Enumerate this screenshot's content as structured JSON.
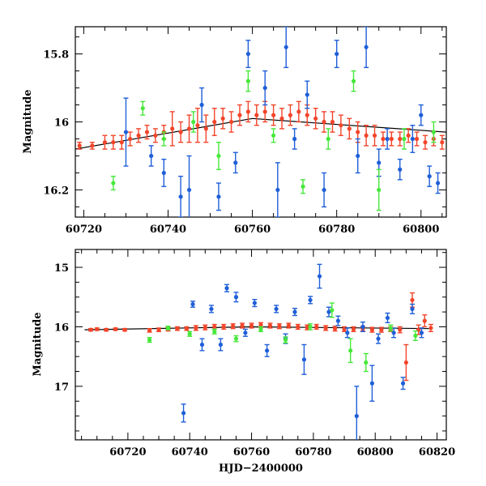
{
  "colors": {
    "series_blue": "#1f5fd8",
    "series_green": "#46e83a",
    "series_red": "#f2452a",
    "fit_line": "#000000",
    "axis": "#000000"
  },
  "chart_data": [
    {
      "type": "scatter",
      "panel": "top",
      "title": "",
      "xlabel": "",
      "ylabel": "Magnitude",
      "xlim": [
        60718,
        60806
      ],
      "ylim": [
        16.28,
        15.72
      ],
      "y_inverted": true,
      "grid": false,
      "legend": "none",
      "xticks": [
        60720,
        60740,
        60760,
        60780,
        60800
      ],
      "xtick_labels": [
        "60720",
        "60740",
        "60760",
        "60780",
        "60800"
      ],
      "yticks": [
        15.8,
        16.0,
        16.2
      ],
      "ytick_labels": [
        "15.8",
        "16",
        "16.2"
      ],
      "trend_line": {
        "x": [
          60718,
          60760,
          60806
        ],
        "y": [
          16.08,
          15.99,
          16.03
        ]
      },
      "series": [
        {
          "color_key": "series_red",
          "x": [
            60719,
            60722,
            60725,
            60727,
            60729,
            60731,
            60733,
            60735,
            60737,
            60739,
            60741,
            60743,
            60745,
            60747,
            60749,
            60751,
            60753,
            60755,
            60757,
            60759,
            60761,
            60763,
            60765,
            60767,
            60769,
            60771,
            60773,
            60775,
            60777,
            60779,
            60781,
            60783,
            60785,
            60787,
            60789,
            60791,
            60793,
            60795,
            60797,
            60799,
            60801,
            60803,
            60805
          ],
          "y": [
            16.07,
            16.07,
            16.06,
            16.06,
            16.06,
            16.05,
            16.04,
            16.03,
            16.04,
            16.03,
            16.02,
            16.03,
            16.02,
            16.01,
            16.02,
            16.0,
            15.99,
            16.0,
            15.98,
            15.97,
            15.98,
            15.97,
            15.98,
            15.99,
            15.98,
            15.97,
            15.98,
            15.99,
            16.0,
            16.0,
            16.01,
            16.02,
            16.03,
            16.04,
            16.04,
            16.05,
            16.05,
            16.05,
            16.04,
            16.05,
            16.06,
            16.05,
            16.06
          ],
          "err": [
            0.01,
            0.01,
            0.02,
            0.02,
            0.02,
            0.02,
            0.02,
            0.02,
            0.02,
            0.02,
            0.05,
            0.03,
            0.04,
            0.05,
            0.04,
            0.04,
            0.03,
            0.03,
            0.03,
            0.03,
            0.03,
            0.03,
            0.03,
            0.03,
            0.03,
            0.03,
            0.03,
            0.03,
            0.03,
            0.03,
            0.03,
            0.03,
            0.03,
            0.03,
            0.03,
            0.02,
            0.02,
            0.02,
            0.02,
            0.02,
            0.02,
            0.02,
            0.02
          ]
        },
        {
          "color_key": "series_blue",
          "x": [
            60730,
            60736,
            60739,
            60743,
            60745,
            60748,
            60752,
            60756,
            60759,
            60763,
            60766,
            60768,
            60770,
            60773,
            60777,
            60780,
            60785,
            60787,
            60790,
            60792,
            60795,
            60798,
            60800,
            60802,
            60804
          ],
          "y": [
            16.03,
            16.1,
            16.15,
            16.22,
            16.2,
            15.95,
            16.22,
            16.12,
            15.8,
            15.9,
            16.2,
            15.78,
            16.05,
            15.92,
            16.2,
            15.8,
            16.1,
            15.78,
            16.12,
            16.05,
            16.14,
            16.05,
            15.98,
            16.16,
            16.18
          ],
          "err": [
            0.1,
            0.03,
            0.04,
            0.06,
            0.1,
            0.05,
            0.04,
            0.03,
            0.04,
            0.05,
            0.08,
            0.06,
            0.03,
            0.04,
            0.05,
            0.04,
            0.05,
            0.06,
            0.04,
            0.03,
            0.03,
            0.04,
            0.03,
            0.03,
            0.03
          ]
        },
        {
          "color_key": "series_green",
          "x": [
            60727,
            60734,
            60739,
            60746,
            60752,
            60759,
            60765,
            60772,
            60778,
            60784,
            60790,
            60796,
            60803
          ],
          "y": [
            16.18,
            15.96,
            16.05,
            16.0,
            16.1,
            15.88,
            16.04,
            16.19,
            16.05,
            15.88,
            16.2,
            16.05,
            16.03
          ],
          "err": [
            0.02,
            0.02,
            0.02,
            0.03,
            0.04,
            0.03,
            0.02,
            0.02,
            0.03,
            0.03,
            0.06,
            0.03,
            0.03
          ]
        }
      ]
    },
    {
      "type": "scatter",
      "panel": "bottom",
      "title": "",
      "xlabel": "HJD−2400000",
      "ylabel": "Magnitude",
      "xlim": [
        60703,
        60823
      ],
      "ylim": [
        17.9,
        14.7
      ],
      "y_inverted": true,
      "grid": false,
      "legend": "none",
      "xticks": [
        60720,
        60740,
        60760,
        60780,
        60800,
        60820
      ],
      "xtick_labels": [
        "60720",
        "60740",
        "60760",
        "60780",
        "60800",
        "60820"
      ],
      "yticks": [
        15,
        16,
        17
      ],
      "ytick_labels": [
        "15",
        "16",
        "17"
      ],
      "trend_line": {
        "x": [
          60706,
          60760,
          60818
        ],
        "y": [
          16.05,
          16.0,
          16.03
        ]
      },
      "series": [
        {
          "color_key": "series_red",
          "x": [
            60708,
            60710,
            60713,
            60716,
            60719,
            60727,
            60730,
            60733,
            60736,
            60739,
            60742,
            60745,
            60748,
            60751,
            60754,
            60757,
            60760,
            60763,
            60766,
            60769,
            60772,
            60775,
            60778,
            60781,
            60784,
            60787,
            60790,
            60793,
            60796,
            60799,
            60802,
            60805,
            60808,
            60810,
            60812,
            60814,
            60816,
            60818
          ],
          "y": [
            16.05,
            16.04,
            16.05,
            16.04,
            16.05,
            16.06,
            16.05,
            16.04,
            16.03,
            16.03,
            16.02,
            16.01,
            16.0,
            16.0,
            15.99,
            15.98,
            15.98,
            15.97,
            15.98,
            15.99,
            15.98,
            16.0,
            16.01,
            16.0,
            16.02,
            16.03,
            16.04,
            16.04,
            16.03,
            16.05,
            16.05,
            16.04,
            16.05,
            16.6,
            15.55,
            16.05,
            15.9,
            16.02
          ],
          "err": [
            0.02,
            0.02,
            0.02,
            0.02,
            0.02,
            0.03,
            0.03,
            0.03,
            0.03,
            0.03,
            0.04,
            0.04,
            0.04,
            0.04,
            0.04,
            0.04,
            0.04,
            0.04,
            0.04,
            0.04,
            0.04,
            0.04,
            0.04,
            0.04,
            0.04,
            0.04,
            0.04,
            0.04,
            0.04,
            0.04,
            0.04,
            0.04,
            0.05,
            0.3,
            0.12,
            0.08,
            0.1,
            0.06
          ]
        },
        {
          "color_key": "series_blue",
          "x": [
            60738,
            60741,
            60744,
            60747,
            60750,
            60752,
            60755,
            60758,
            60761,
            60765,
            60768,
            60771,
            60774,
            60777,
            60779,
            60782,
            60785,
            60788,
            60791,
            60794,
            60796,
            60799,
            60801,
            60804,
            60806,
            60809,
            60812,
            60815
          ],
          "y": [
            17.45,
            15.62,
            16.3,
            15.7,
            16.3,
            15.35,
            15.5,
            16.1,
            15.6,
            16.4,
            15.7,
            16.2,
            15.75,
            16.55,
            15.55,
            15.15,
            15.75,
            15.9,
            16.1,
            17.5,
            16.0,
            16.95,
            16.2,
            15.85,
            16.1,
            16.95,
            15.7,
            16.1
          ],
          "err": [
            0.15,
            0.05,
            0.1,
            0.06,
            0.1,
            0.06,
            0.08,
            0.06,
            0.06,
            0.1,
            0.06,
            0.08,
            0.06,
            0.25,
            0.06,
            0.2,
            0.08,
            0.08,
            0.08,
            0.5,
            0.08,
            0.3,
            0.08,
            0.08,
            0.08,
            0.1,
            0.08,
            0.08
          ]
        },
        {
          "color_key": "series_green",
          "x": [
            60727,
            60733,
            60740,
            60748,
            60755,
            60763,
            60771,
            60779,
            60786,
            60792,
            60797,
            60805,
            60813
          ],
          "y": [
            16.22,
            16.02,
            16.12,
            16.08,
            16.2,
            16.04,
            16.22,
            16.0,
            15.72,
            16.4,
            16.6,
            16.02,
            16.15
          ],
          "err": [
            0.04,
            0.03,
            0.04,
            0.04,
            0.05,
            0.04,
            0.05,
            0.05,
            0.12,
            0.2,
            0.15,
            0.05,
            0.08
          ]
        }
      ]
    }
  ]
}
